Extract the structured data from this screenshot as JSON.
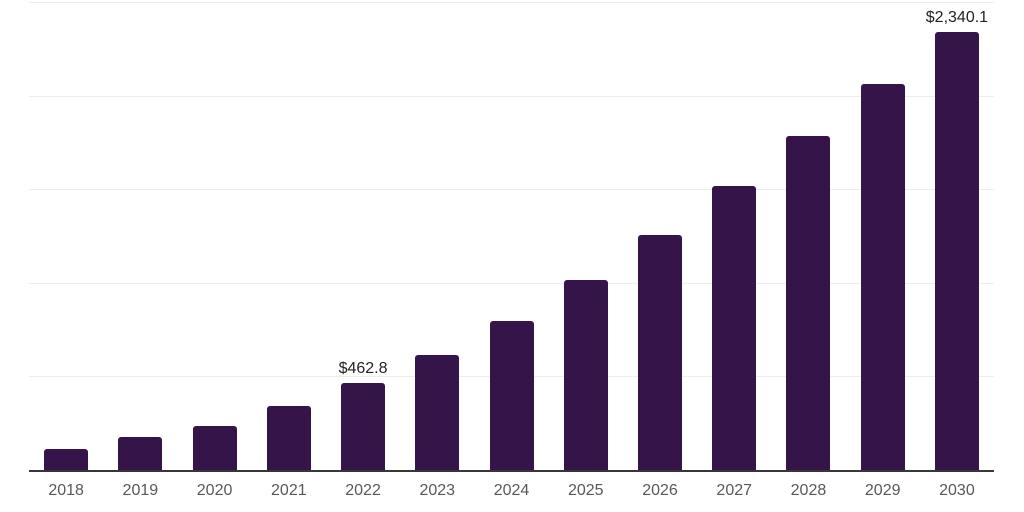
{
  "chart_data": {
    "type": "bar",
    "title": "",
    "xlabel": "",
    "ylabel": "",
    "categories": [
      "2018",
      "2019",
      "2020",
      "2021",
      "2022",
      "2023",
      "2024",
      "2025",
      "2026",
      "2027",
      "2028",
      "2029",
      "2030"
    ],
    "values": [
      112,
      177,
      235,
      342,
      462.8,
      615,
      797,
      1017,
      1257,
      1519,
      1786,
      2064,
      2340.1
    ],
    "point_labels": {
      "2022": "$462.8",
      "2030": "$2,340.1"
    },
    "ylim": [
      0,
      2500
    ],
    "gridline_step": 500,
    "grid": "horizontal-only",
    "legend": "none",
    "colors": {
      "bar": "#351549",
      "gridline": "#ededee",
      "axis_line": "#37373a",
      "value_label_text": "#232326",
      "tick_label_text": "#58585b",
      "background": "#ffffff"
    }
  }
}
